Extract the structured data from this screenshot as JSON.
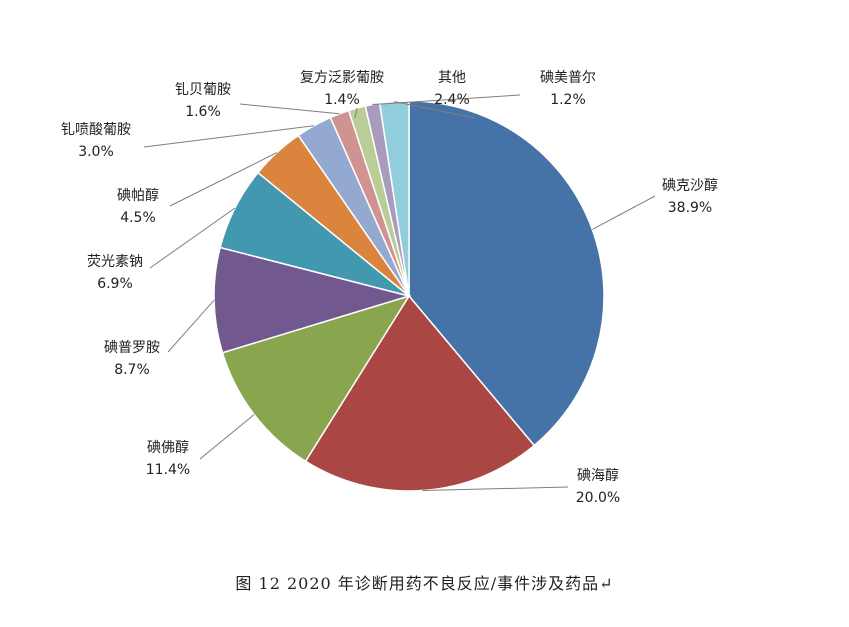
{
  "chart_data": {
    "type": "pie",
    "slices": [
      {
        "label": "碘克沙醇",
        "value": 38.9,
        "pct": "38.9%",
        "color": "#4572A7"
      },
      {
        "label": "碘海醇",
        "value": 20.0,
        "pct": "20.0%",
        "color": "#AA4643"
      },
      {
        "label": "碘佛醇",
        "value": 11.4,
        "pct": "11.4%",
        "color": "#89A54E"
      },
      {
        "label": "碘普罗胺",
        "value": 8.7,
        "pct": "8.7%",
        "color": "#71588F"
      },
      {
        "label": "荧光素钠",
        "value": 6.9,
        "pct": "6.9%",
        "color": "#4198AF"
      },
      {
        "label": "碘帕醇",
        "value": 4.5,
        "pct": "4.5%",
        "color": "#DB843D"
      },
      {
        "label": "钆喷酸葡胺",
        "value": 3.0,
        "pct": "3.0%",
        "color": "#93A9CF"
      },
      {
        "label": "钆贝葡胺",
        "value": 1.6,
        "pct": "1.6%",
        "color": "#D19392"
      },
      {
        "label": "复方泛影葡胺",
        "value": 1.4,
        "pct": "1.4%",
        "color": "#B9CD96"
      },
      {
        "label": "碘美普尔",
        "value": 1.2,
        "pct": "1.2%",
        "color": "#A99BBD"
      },
      {
        "label": "其他",
        "value": 2.4,
        "pct": "2.4%",
        "color": "#92CDDC"
      }
    ]
  },
  "caption": "图 12   2020 年诊断用药不良反应/事件涉及药品↵"
}
